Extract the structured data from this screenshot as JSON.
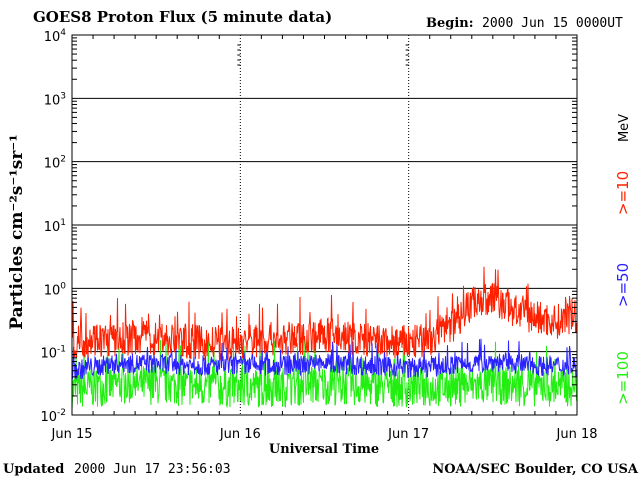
{
  "header": {
    "title": "GOES8 Proton Flux (5 minute data)",
    "begin_label": "Begin:",
    "begin_value": "2000 Jun 15 0000UT"
  },
  "footer": {
    "updated_label": "Updated",
    "updated_value": "2000 Jun 17 23:56:03",
    "credit": "NOAA/SEC Boulder, CO USA"
  },
  "right_labels": {
    "unit": "MeV",
    "series": [
      {
        "text": ">=10",
        "color": "#ff2000"
      },
      {
        "text": ">=50",
        "color": "#2a22ff"
      },
      {
        "text": ">=100",
        "color": "#22ee11"
      }
    ]
  },
  "chart_data": {
    "type": "line",
    "title": "GOES8 Proton Flux (5 minute data)",
    "xlabel": "Universal Time",
    "ylabel": "Particles cm⁻²s⁻¹sr⁻¹",
    "y_scale": "log",
    "ylim": [
      0.01,
      10000
    ],
    "xlim": [
      "2000-06-15",
      "2000-06-18"
    ],
    "x_ticks": [
      "Jun 15",
      "Jun 16",
      "Jun 17",
      "Jun 18"
    ],
    "y_ticks": [
      {
        "value": 0.01,
        "base": "10",
        "exp": "-2"
      },
      {
        "value": 0.1,
        "base": "10",
        "exp": "-1"
      },
      {
        "value": 1,
        "base": "10",
        "exp": "0"
      },
      {
        "value": 10,
        "base": "10",
        "exp": "1"
      },
      {
        "value": 100,
        "base": "10",
        "exp": "2"
      },
      {
        "value": 1000,
        "base": "10",
        "exp": "3"
      },
      {
        "value": 10000,
        "base": "10",
        "exp": "4"
      }
    ],
    "grid": true,
    "series": [
      {
        "name": ">=10 MeV",
        "color": "#ff2000",
        "x": [
          "2000-06-15T00:00",
          "2000-06-15T03:00",
          "2000-06-15T06:00",
          "2000-06-15T09:00",
          "2000-06-15T12:00",
          "2000-06-15T15:00",
          "2000-06-15T18:00",
          "2000-06-15T21:00",
          "2000-06-16T00:00",
          "2000-06-16T03:00",
          "2000-06-16T06:00",
          "2000-06-16T09:00",
          "2000-06-16T12:00",
          "2000-06-16T15:00",
          "2000-06-16T18:00",
          "2000-06-16T21:00",
          "2000-06-17T00:00",
          "2000-06-17T03:00",
          "2000-06-17T06:00",
          "2000-06-17T09:00",
          "2000-06-17T12:00",
          "2000-06-17T15:00",
          "2000-06-17T18:00",
          "2000-06-17T21:00",
          "2000-06-17T23:55"
        ],
        "values": [
          0.14,
          0.16,
          0.15,
          0.17,
          0.16,
          0.15,
          0.14,
          0.13,
          0.14,
          0.16,
          0.15,
          0.17,
          0.18,
          0.17,
          0.15,
          0.14,
          0.14,
          0.15,
          0.25,
          0.6,
          0.7,
          0.45,
          0.35,
          0.3,
          0.35
        ]
      },
      {
        "name": ">=50 MeV",
        "color": "#2a22ff",
        "x": [
          "2000-06-15T00:00",
          "2000-06-15T06:00",
          "2000-06-15T12:00",
          "2000-06-15T18:00",
          "2000-06-16T00:00",
          "2000-06-16T06:00",
          "2000-06-16T12:00",
          "2000-06-16T18:00",
          "2000-06-17T00:00",
          "2000-06-17T06:00",
          "2000-06-17T12:00",
          "2000-06-17T18:00",
          "2000-06-17T23:55"
        ],
        "values": [
          0.05,
          0.065,
          0.065,
          0.06,
          0.06,
          0.06,
          0.065,
          0.06,
          0.055,
          0.06,
          0.07,
          0.06,
          0.06
        ]
      },
      {
        "name": ">=100 MeV",
        "color": "#22ee11",
        "x": [
          "2000-06-15T00:00",
          "2000-06-15T06:00",
          "2000-06-15T12:00",
          "2000-06-15T18:00",
          "2000-06-16T00:00",
          "2000-06-16T06:00",
          "2000-06-16T12:00",
          "2000-06-16T18:00",
          "2000-06-17T00:00",
          "2000-06-17T06:00",
          "2000-06-17T12:00",
          "2000-06-17T18:00",
          "2000-06-17T23:55"
        ],
        "values": [
          0.025,
          0.03,
          0.03,
          0.028,
          0.027,
          0.028,
          0.03,
          0.028,
          0.027,
          0.028,
          0.03,
          0.028,
          0.028
        ]
      }
    ]
  }
}
